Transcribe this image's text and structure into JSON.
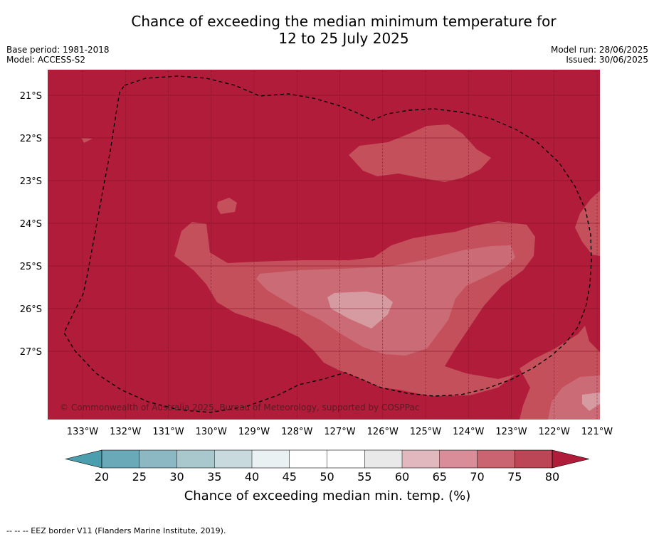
{
  "title_line1": "Chance of exceeding the median minimum temperature for",
  "title_line2": "12 to 25 July 2025",
  "base_period": "Base period: 1981-2018",
  "model": "Model: ACCESS-S2",
  "model_run": "Model run: 28/06/2025",
  "issued": "Issued: 30/06/2025",
  "lat_labels": [
    "21°S",
    "22°S",
    "23°S",
    "24°S",
    "25°S",
    "26°S",
    "27°S"
  ],
  "lon_labels": [
    "133°W",
    "132°W",
    "131°W",
    "130°W",
    "129°W",
    "128°W",
    "127°W",
    "126°W",
    "125°W",
    "124°W",
    "123°W",
    "122°W",
    "121°W"
  ],
  "copyright": "© Commonwealth of Australia 2025, Bureau of Meteorology, supported by COSPPac",
  "colorbar": {
    "ticks": [
      "20",
      "25",
      "30",
      "35",
      "40",
      "45",
      "50",
      "55",
      "60",
      "65",
      "70",
      "75",
      "80"
    ],
    "colors": [
      "#6aaab8",
      "#8cb8c4",
      "#a9c8ce",
      "#c9dade",
      "#eaf1f3",
      "#ffffff",
      "#ffffff",
      "#e9e9ea",
      "#e2b8bf",
      "#d88d98",
      "#c96470",
      "#bc4556"
    ],
    "low_color": "#4a9eae",
    "high_color": "#b01d3a",
    "title": "Chance of exceeding median min. temp. (%)"
  },
  "map_colors": {
    "over80": "#b11c3a",
    "c75": "#c4505b",
    "c70": "#cb6b76",
    "c65": "#d69aa1"
  },
  "footer": "--  --  -- EEZ border V11 (Flanders Marine Institute, 2019)."
}
